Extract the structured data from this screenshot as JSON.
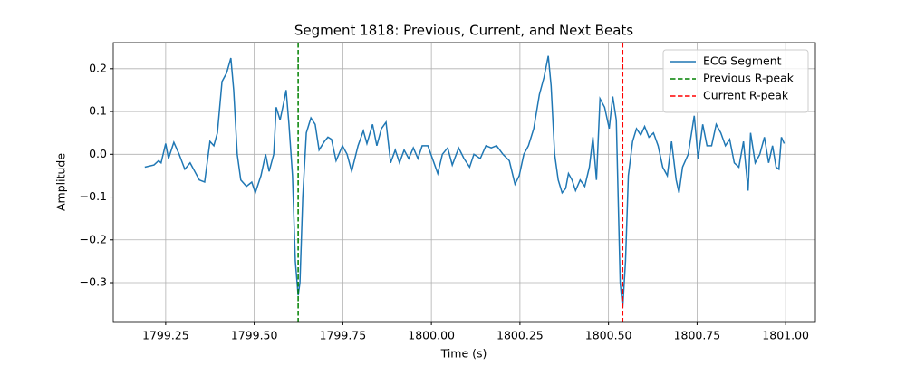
{
  "chart_data": {
    "type": "line",
    "title": "Segment 1818: Previous, Current, and Next Beats",
    "xlabel": "Time (s)",
    "ylabel": "Amplitude",
    "xlim": [
      1799.102,
      1801.084
    ],
    "ylim": [
      -0.391,
      0.261
    ],
    "xticks": [
      1799.25,
      {
        "value": 1799.5,
        "label": "1799.50"
      },
      1799.75,
      {
        "value": 1800,
        "label": "1800.00"
      },
      1800.25,
      {
        "value": 1800.5,
        "label": "1800.50"
      },
      1800.75,
      {
        "value": 1801,
        "label": "1801.00"
      }
    ],
    "yticks": [
      {
        "value": -0.3,
        "label": "−0.3"
      },
      {
        "value": -0.2,
        "label": "−0.2"
      },
      {
        "value": -0.1,
        "label": "−0.1"
      },
      {
        "value": 0,
        "label": "0.0"
      },
      0.1,
      0.2
    ],
    "grid": true,
    "legend": "upper right",
    "x": [
      1799.191,
      1799.217,
      1799.23,
      1799.237,
      1799.25,
      1799.258,
      1799.273,
      1799.288,
      1799.304,
      1799.319,
      1799.332,
      1799.345,
      1799.36,
      1799.375,
      1799.386,
      1799.396,
      1799.409,
      1799.422,
      1799.434,
      1799.442,
      1799.452,
      1799.462,
      1799.478,
      1799.493,
      1799.503,
      1799.519,
      1799.532,
      1799.542,
      1799.555,
      1799.562,
      1799.573,
      1799.583,
      1799.59,
      1799.598,
      1799.608,
      1799.616,
      1799.624,
      1799.629,
      1799.637,
      1799.647,
      1799.66,
      1799.672,
      1799.683,
      1799.698,
      1799.708,
      1799.718,
      1799.731,
      1799.749,
      1799.762,
      1799.775,
      1799.793,
      1799.808,
      1799.818,
      1799.834,
      1799.846,
      1799.859,
      1799.872,
      1799.885,
      1799.898,
      1799.91,
      1799.923,
      1799.936,
      1799.949,
      1799.962,
      1799.974,
      1799.99,
      1800.003,
      1800.018,
      1800.031,
      1800.046,
      1800.059,
      1800.077,
      1800.092,
      1800.108,
      1800.12,
      1800.138,
      1800.154,
      1800.169,
      1800.184,
      1800.202,
      1800.22,
      1800.236,
      1800.248,
      1800.261,
      1800.274,
      1800.289,
      1800.305,
      1800.318,
      1800.33,
      1800.338,
      1800.348,
      1800.358,
      1800.369,
      1800.379,
      1800.387,
      1800.397,
      1800.407,
      1800.42,
      1800.433,
      1800.446,
      1800.456,
      1800.466,
      1800.476,
      1800.489,
      1800.502,
      1800.512,
      1800.522,
      1800.533,
      1800.54,
      1800.548,
      1800.556,
      1800.568,
      1800.579,
      1800.591,
      1800.602,
      1800.614,
      1800.627,
      1800.64,
      1800.653,
      1800.666,
      1800.678,
      1800.691,
      1800.699,
      1800.709,
      1800.725,
      1800.742,
      1800.753,
      1800.766,
      1800.778,
      1800.791,
      1800.804,
      1800.817,
      1800.83,
      1800.842,
      1800.855,
      1800.868,
      1800.881,
      1800.894,
      1800.901,
      1800.914,
      1800.927,
      1800.94,
      1800.952,
      1800.963,
      1800.973,
      1800.981,
      1800.988,
      1800.996
    ],
    "series": [
      {
        "name": "ECG Segment",
        "color": "#1f77b4",
        "values": [
          -0.03,
          -0.025,
          -0.015,
          -0.02,
          0.025,
          -0.01,
          0.028,
          0.0,
          -0.035,
          -0.02,
          -0.04,
          -0.06,
          -0.065,
          0.03,
          0.02,
          0.05,
          0.17,
          0.19,
          0.225,
          0.15,
          0.0,
          -0.06,
          -0.075,
          -0.065,
          -0.09,
          -0.05,
          0.0,
          -0.04,
          0.0,
          0.11,
          0.08,
          0.12,
          0.15,
          0.07,
          -0.05,
          -0.25,
          -0.33,
          -0.3,
          -0.1,
          0.05,
          0.085,
          0.07,
          0.01,
          0.03,
          0.04,
          0.035,
          -0.015,
          0.02,
          0.0,
          -0.04,
          0.02,
          0.055,
          0.025,
          0.07,
          0.02,
          0.06,
          0.075,
          -0.02,
          0.01,
          -0.02,
          0.01,
          -0.01,
          0.015,
          -0.01,
          0.02,
          0.02,
          -0.01,
          -0.045,
          0.0,
          0.015,
          -0.025,
          0.015,
          -0.01,
          -0.03,
          0.0,
          -0.01,
          0.02,
          0.015,
          0.02,
          0.0,
          -0.015,
          -0.07,
          -0.05,
          0.0,
          0.02,
          0.06,
          0.14,
          0.18,
          0.23,
          0.16,
          0.0,
          -0.06,
          -0.09,
          -0.08,
          -0.045,
          -0.06,
          -0.085,
          -0.06,
          -0.075,
          -0.03,
          0.04,
          -0.06,
          0.13,
          0.11,
          0.06,
          0.135,
          0.08,
          -0.3,
          -0.36,
          -0.25,
          -0.05,
          0.03,
          0.06,
          0.045,
          0.065,
          0.04,
          0.05,
          0.02,
          -0.03,
          -0.05,
          0.03,
          -0.06,
          -0.09,
          -0.03,
          0.0,
          0.09,
          -0.01,
          0.07,
          0.02,
          0.02,
          0.07,
          0.05,
          0.02,
          0.035,
          -0.02,
          -0.03,
          0.03,
          -0.085,
          0.05,
          -0.02,
          0.0,
          0.04,
          -0.02,
          0.02,
          -0.03,
          -0.035,
          0.04,
          0.025
        ]
      }
    ],
    "vlines": [
      {
        "name": "Previous R-peak",
        "x": 1799.624,
        "color": "green"
      },
      {
        "name": "Current R-peak",
        "x": 1800.54,
        "color": "red"
      }
    ]
  }
}
